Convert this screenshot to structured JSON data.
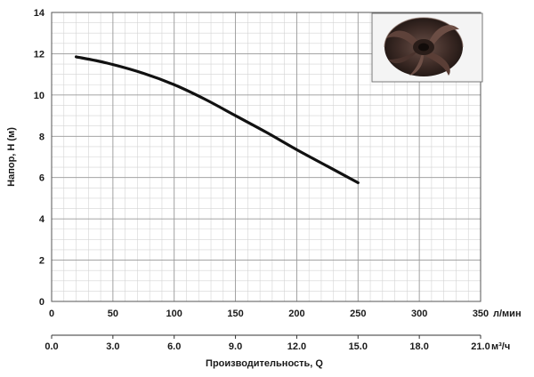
{
  "chart_data": {
    "type": "line",
    "ylabel": "Напор, H (м)",
    "xlabel": "Производительность, Q",
    "x_unit": "л/мин",
    "x2_unit": "м³/ч",
    "xlim": [
      0,
      350
    ],
    "ylim": [
      0,
      14
    ],
    "x_ticks": [
      0,
      50,
      100,
      150,
      200,
      250,
      300,
      350
    ],
    "x2_ticks": [
      "0.0",
      "3.0",
      "6.0",
      "9.0",
      "12.0",
      "15.0",
      "18.0",
      "21.0"
    ],
    "y_ticks": [
      0,
      2,
      4,
      6,
      8,
      10,
      12,
      14
    ],
    "grid": true,
    "series": [
      {
        "color": "#111111",
        "points": [
          {
            "x": 20,
            "y": 11.85
          },
          {
            "x": 45,
            "y": 11.55
          },
          {
            "x": 75,
            "y": 11.05
          },
          {
            "x": 100,
            "y": 10.5
          },
          {
            "x": 125,
            "y": 9.8
          },
          {
            "x": 150,
            "y": 9.0
          },
          {
            "x": 175,
            "y": 8.2
          },
          {
            "x": 200,
            "y": 7.35
          },
          {
            "x": 225,
            "y": 6.55
          },
          {
            "x": 250,
            "y": 5.75
          }
        ]
      }
    ],
    "inset_image": "impeller-photo"
  }
}
